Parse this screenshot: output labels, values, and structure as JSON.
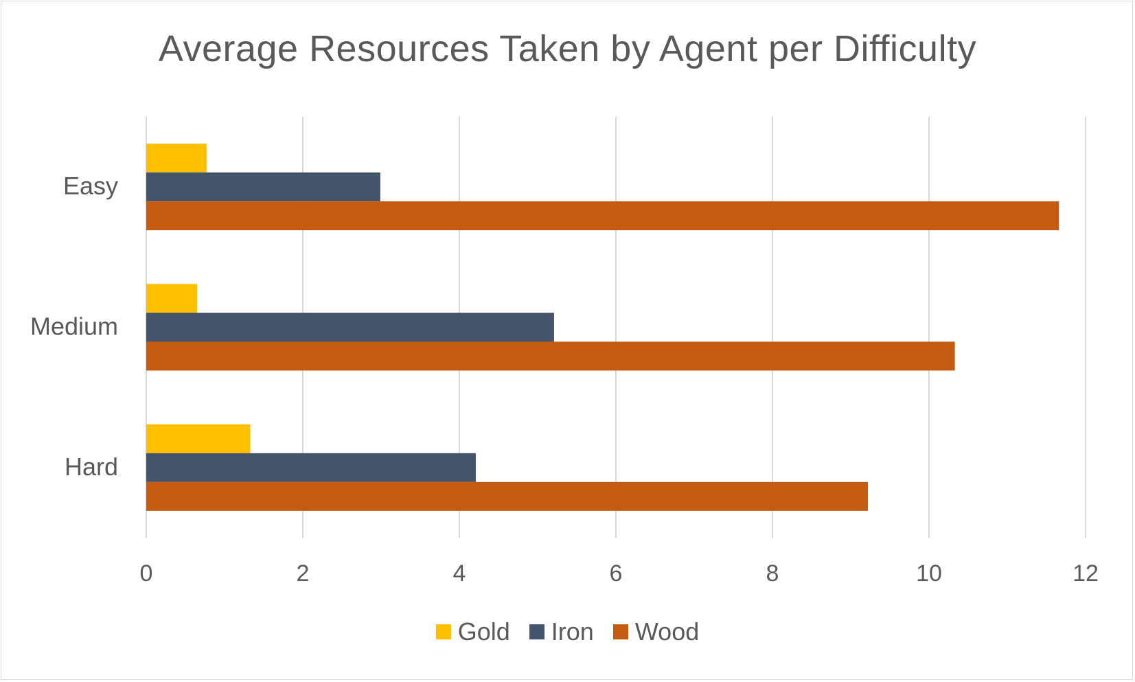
{
  "chart_data": {
    "type": "bar",
    "orientation": "horizontal",
    "title": "Average Resources Taken by Agent per Difficulty",
    "xlabel": "",
    "ylabel": "",
    "categories": [
      "Easy",
      "Medium",
      "Hard"
    ],
    "series": [
      {
        "name": "Gold",
        "color": "#FFC000",
        "values": [
          0.77,
          0.65,
          1.33
        ]
      },
      {
        "name": "Iron",
        "color": "#44546A",
        "values": [
          2.99,
          5.21,
          4.21
        ]
      },
      {
        "name": "Wood",
        "color": "#C55A11",
        "values": [
          11.66,
          10.33,
          9.22
        ]
      }
    ],
    "xlim": [
      0,
      12
    ],
    "x_ticks": [
      "0",
      "2",
      "4",
      "6",
      "8",
      "10",
      "12"
    ],
    "grid": true,
    "legend_position": "bottom"
  }
}
